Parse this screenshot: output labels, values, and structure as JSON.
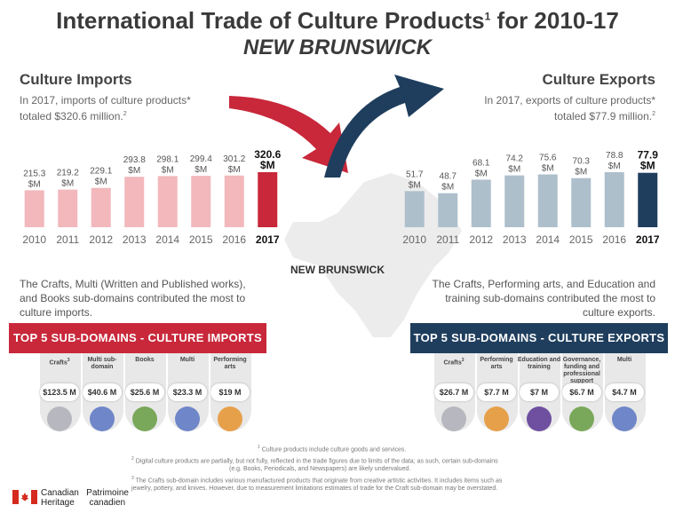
{
  "title": {
    "main": "International Trade of Culture Products",
    "sup": "1",
    "suffix": " for 2010-17",
    "region": "NEW BRUNSWICK"
  },
  "imports": {
    "heading": "Culture Imports",
    "intro_line1": "In 2017, imports of culture products*",
    "intro_line2": "totaled $320.6 million.",
    "intro_sup": "2",
    "contrib_line1": "The Crafts, Multi (Written and Published works),",
    "contrib_line2": "and Books sub-domains contributed the most to",
    "contrib_line3": "culture imports.",
    "banner": "TOP 5 SUB-DOMAINS - CULTURE IMPORTS",
    "top5": [
      {
        "name": "Crafts",
        "sup": "3",
        "value": "$123.5 M",
        "icon": "crafts-icon"
      },
      {
        "name": "Multi sub-domain",
        "sup": "",
        "value": "$40.6 M",
        "icon": "people-icon"
      },
      {
        "name": "Books",
        "sup": "",
        "value": "$25.6 M",
        "icon": "book-icon"
      },
      {
        "name": "Multi",
        "sup": "",
        "value": "$23.3 M",
        "icon": "people-icon"
      },
      {
        "name": "Performing arts",
        "sup": "",
        "value": "$19 M",
        "icon": "theatre-masks-icon"
      }
    ]
  },
  "exports": {
    "heading": "Culture Exports",
    "intro_line1": "In 2017, exports of culture products*",
    "intro_line2": "totaled $77.9 million.",
    "intro_sup": "2",
    "contrib_line1": "The Crafts, Performing arts, and Education and",
    "contrib_line2": "training sub-domains contributed the most to",
    "contrib_line3": "culture exports.",
    "banner": "TOP 5 SUB-DOMAINS - CULTURE EXPORTS",
    "top5": [
      {
        "name": "Crafts",
        "sup": "3",
        "value": "$26.7 M",
        "icon": "crafts-icon"
      },
      {
        "name": "Performing arts",
        "sup": "",
        "value": "$7.7 M",
        "icon": "theatre-masks-icon"
      },
      {
        "name": "Education and training",
        "sup": "",
        "value": "$7 M",
        "icon": "graduation-cap-icon"
      },
      {
        "name": "Governance, funding and professional support",
        "sup": "",
        "value": "$6.7 M",
        "icon": "meeting-icon"
      },
      {
        "name": "Multi",
        "sup": "",
        "value": "$4.7 M",
        "icon": "people-icon"
      }
    ]
  },
  "map_label": "NEW BRUNSWICK",
  "chart_data": [
    {
      "type": "bar",
      "title": "Culture Imports",
      "categories": [
        "2010",
        "2011",
        "2012",
        "2013",
        "2014",
        "2015",
        "2016",
        "2017"
      ],
      "values": [
        215.3,
        219.2,
        229.1,
        293.8,
        298.1,
        299.4,
        301.2,
        320.6
      ],
      "unit": "$M",
      "highlight_category": "2017",
      "color": "#f2b8bc",
      "highlight_color": "#c8283a"
    },
    {
      "type": "bar",
      "title": "Culture Exports",
      "categories": [
        "2010",
        "2011",
        "2012",
        "2013",
        "2014",
        "2015",
        "2016",
        "2017"
      ],
      "values": [
        51.7,
        48.7,
        68.1,
        74.2,
        75.6,
        70.3,
        78.8,
        77.9
      ],
      "unit": "$M",
      "highlight_category": "2017",
      "color": "#aebfcc",
      "highlight_color": "#1f3e5e"
    }
  ],
  "notes": {
    "n1": "Culture products include culture goods and services.",
    "n2_line1": "Digital culture products are partially, but not fully, reflected in the trade figures due to limits of the data; as such, certain sub-domains",
    "n2_line2": "(e.g. Books, Periodicals, and Newspapers) are likely undervalued.",
    "n3_line1": "The Crafts sub-domain includes various manufactured products that originate from creative artistic activities. It includes items such as",
    "n3_line2": "jewelry, pottery, and knives. However, due to measurement limitations estimates of trade for the Craft sub-domain may be overstated."
  },
  "footer": {
    "line1a": "Canadian",
    "line1b": "Patrimoine",
    "line2a": "Heritage",
    "line2b": "canadien"
  },
  "colors": {
    "import_red": "#c8283a",
    "export_navy": "#1f3e5e"
  }
}
